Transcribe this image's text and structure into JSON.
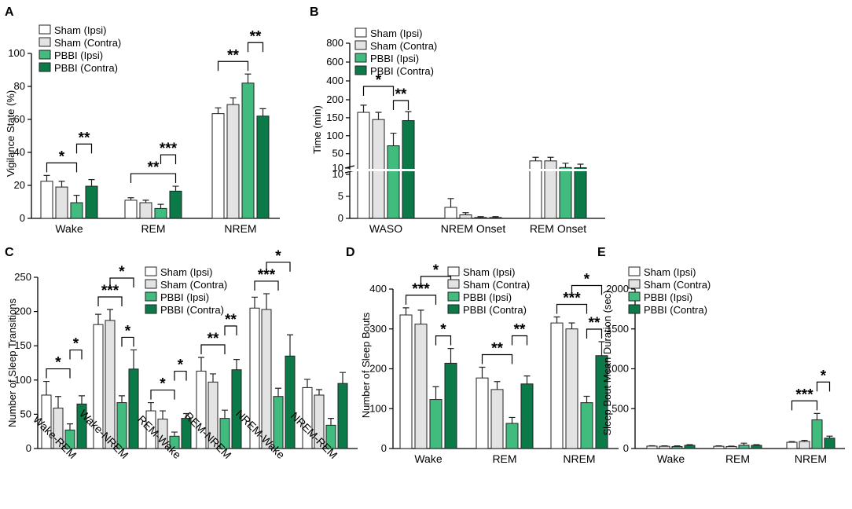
{
  "colors": {
    "sham_ipsi": "#ffffff",
    "sham_contra": "#e3e3e3",
    "pbbi_ipsi": "#41bb7e",
    "pbbi_contra": "#0b7a48",
    "edge": "#222222"
  },
  "chart_data": [
    {
      "panel": "A",
      "type": "bar",
      "ylabel": "Vigilance State (%)",
      "ylim": [
        0,
        100
      ],
      "yticks": [
        "0",
        "20",
        "40",
        "60",
        "80",
        "100"
      ],
      "categories": [
        "Wake",
        "REM",
        "NREM"
      ],
      "legend": [
        "Sham (Ipsi)",
        "Sham (Contra)",
        "PBBI (Ipsi)",
        "PBBI (Contra)"
      ],
      "series": [
        {
          "name": "Sham (Ipsi)",
          "values": [
            22.5,
            11,
            63.5
          ],
          "errors": [
            3.5,
            1.5,
            3.5
          ]
        },
        {
          "name": "Sham (Contra)",
          "values": [
            19,
            9.5,
            69
          ],
          "errors": [
            3.5,
            1.5,
            4
          ]
        },
        {
          "name": "PBBI (Ipsi)",
          "values": [
            9.5,
            6,
            82
          ],
          "errors": [
            4.5,
            2.5,
            5.5
          ]
        },
        {
          "name": "PBBI (Contra)",
          "values": [
            19.5,
            16.5,
            62
          ],
          "errors": [
            4,
            3,
            4.5
          ]
        }
      ],
      "annotations": [
        {
          "text": "*",
          "from": [
            0,
            0
          ],
          "to": [
            0,
            2
          ]
        },
        {
          "text": "**",
          "from": [
            0,
            2
          ],
          "to": [
            0,
            3
          ]
        },
        {
          "text": "**",
          "from": [
            1,
            0
          ],
          "to": [
            1,
            3
          ]
        },
        {
          "text": "***",
          "from": [
            1,
            2
          ],
          "to": [
            1,
            3
          ]
        },
        {
          "text": "**",
          "from": [
            2,
            0
          ],
          "to": [
            2,
            2
          ]
        },
        {
          "text": "**",
          "from": [
            2,
            2
          ],
          "to": [
            2,
            3
          ]
        }
      ]
    },
    {
      "panel": "B",
      "type": "bar",
      "ylabel": "Time (min)",
      "broken_axis": true,
      "ylim_lower": [
        0,
        10
      ],
      "ylim_upper": [
        10,
        800
      ],
      "yticks": [
        "0",
        "5",
        "10",
        "10",
        "50",
        "100",
        "150",
        "200",
        "400",
        "600",
        "800"
      ],
      "categories": [
        "WASO",
        "NREM Onset",
        "REM Onset"
      ],
      "legend": [
        "Sham (Ipsi)",
        "Sham (Contra)",
        "PBBI (Ipsi)",
        "PBBI (Contra)"
      ],
      "series": [
        {
          "name": "Sham (Ipsi)",
          "values": [
            165,
            2.5,
            30
          ],
          "errors": [
            20,
            2,
            10
          ]
        },
        {
          "name": "Sham (Contra)",
          "values": [
            145,
            0.8,
            30
          ],
          "errors": [
            20,
            0.5,
            10
          ]
        },
        {
          "name": "PBBI (Ipsi)",
          "values": [
            72,
            0.2,
            11.5
          ],
          "errors": [
            35,
            0.2,
            12
          ]
        },
        {
          "name": "PBBI (Contra)",
          "values": [
            142,
            0.2,
            11
          ],
          "errors": [
            25,
            0.2,
            10
          ]
        }
      ],
      "annotations": [
        {
          "text": "*",
          "from": [
            0,
            0
          ],
          "to": [
            0,
            2
          ]
        },
        {
          "text": "**",
          "from": [
            0,
            2
          ],
          "to": [
            0,
            3
          ]
        }
      ]
    },
    {
      "panel": "C",
      "type": "bar",
      "ylabel": "Number of Sleep Transitions",
      "ylim": [
        0,
        250
      ],
      "yticks": [
        "0",
        "50",
        "100",
        "150",
        "200",
        "250"
      ],
      "categories": [
        "Wake-REM",
        "Wake-NREM",
        "REM-Wake",
        "REM-NREM",
        "NREM-Wake",
        "NREM-REM"
      ],
      "legend": [
        "Sham (Ipsi)",
        "Sham (Contra)",
        "PBBI (Ipsi)",
        "PBBI (Contra)"
      ],
      "series": [
        {
          "name": "Sham (Ipsi)",
          "values": [
            78,
            181,
            55,
            113,
            205,
            89
          ],
          "errors": [
            20,
            15,
            12,
            20,
            16,
            12
          ]
        },
        {
          "name": "Sham (Contra)",
          "values": [
            59,
            187,
            43,
            97,
            203,
            78
          ],
          "errors": [
            17,
            16,
            12,
            12,
            23,
            8
          ]
        },
        {
          "name": "PBBI (Ipsi)",
          "values": [
            27,
            67,
            18,
            44,
            76,
            34
          ],
          "errors": [
            9,
            10,
            6,
            12,
            12,
            10
          ]
        },
        {
          "name": "PBBI (Contra)",
          "values": [
            65,
            116,
            44,
            115,
            135,
            95
          ],
          "errors": [
            12,
            28,
            7,
            15,
            31,
            16
          ]
        }
      ],
      "annotations": [
        {
          "text": "*",
          "from": [
            0,
            0
          ],
          "to": [
            0,
            2
          ]
        },
        {
          "text": "*",
          "from": [
            0,
            2
          ],
          "to": [
            0,
            3
          ]
        },
        {
          "text": "***",
          "from": [
            1,
            0
          ],
          "to": [
            1,
            2
          ]
        },
        {
          "text": "*",
          "from": [
            1,
            1
          ],
          "to": [
            1,
            3
          ]
        },
        {
          "text": "*",
          "from": [
            1,
            2
          ],
          "to": [
            1,
            3
          ]
        },
        {
          "text": "*",
          "from": [
            2,
            0
          ],
          "to": [
            2,
            2
          ]
        },
        {
          "text": "*",
          "from": [
            2,
            2
          ],
          "to": [
            2,
            3
          ]
        },
        {
          "text": "**",
          "from": [
            3,
            0
          ],
          "to": [
            3,
            2
          ]
        },
        {
          "text": "**",
          "from": [
            3,
            2
          ],
          "to": [
            3,
            3
          ]
        },
        {
          "text": "***",
          "from": [
            4,
            0
          ],
          "to": [
            4,
            2
          ]
        },
        {
          "text": "*",
          "from": [
            4,
            1
          ],
          "to": [
            4,
            3
          ]
        }
      ]
    },
    {
      "panel": "D",
      "type": "bar",
      "ylabel": "Number of Sleep Bouts",
      "ylim": [
        0,
        400
      ],
      "yticks": [
        "0",
        "100",
        "200",
        "300",
        "400"
      ],
      "categories": [
        "Wake",
        "REM",
        "NREM"
      ],
      "legend": [
        "Sham (Ipsi)",
        "Sham (Contra)",
        "PBBI (Ipsi)",
        "PBBI (Contra)"
      ],
      "series": [
        {
          "name": "Sham (Ipsi)",
          "values": [
            335,
            177,
            315
          ],
          "errors": [
            18,
            27,
            15
          ]
        },
        {
          "name": "Sham (Contra)",
          "values": [
            312,
            148,
            300
          ],
          "errors": [
            35,
            20,
            15
          ]
        },
        {
          "name": "PBBI (Ipsi)",
          "values": [
            123,
            63,
            115
          ],
          "errors": [
            32,
            15,
            16
          ]
        },
        {
          "name": "PBBI (Contra)",
          "values": [
            214,
            162,
            233
          ],
          "errors": [
            37,
            20,
            35
          ]
        }
      ],
      "annotations": [
        {
          "text": "***",
          "from": [
            0,
            0
          ],
          "to": [
            0,
            2
          ]
        },
        {
          "text": "*",
          "from": [
            0,
            1
          ],
          "to": [
            0,
            3
          ]
        },
        {
          "text": "*",
          "from": [
            0,
            2
          ],
          "to": [
            0,
            3
          ]
        },
        {
          "text": "**",
          "from": [
            1,
            0
          ],
          "to": [
            1,
            2
          ]
        },
        {
          "text": "**",
          "from": [
            1,
            2
          ],
          "to": [
            1,
            3
          ]
        },
        {
          "text": "***",
          "from": [
            2,
            0
          ],
          "to": [
            2,
            2
          ]
        },
        {
          "text": "*",
          "from": [
            2,
            1
          ],
          "to": [
            2,
            3
          ]
        },
        {
          "text": "**",
          "from": [
            2,
            2
          ],
          "to": [
            2,
            3
          ]
        }
      ]
    },
    {
      "panel": "E",
      "type": "bar",
      "ylabel": "Sleep Bout  Mean Duration  (sec)",
      "ylim": [
        0,
        2000
      ],
      "yticks": [
        "0",
        "500",
        "1000",
        "1500",
        "2000"
      ],
      "categories": [
        "Wake",
        "REM",
        "NREM"
      ],
      "legend": [
        "Sham (Ipsi)",
        "Sham (Contra)",
        "PBBI (Ipsi)",
        "PBBI (Contra)"
      ],
      "series": [
        {
          "name": "Sham (Ipsi)",
          "values": [
            30,
            28,
            78
          ],
          "errors": [
            5,
            5,
            8
          ]
        },
        {
          "name": "Sham (Contra)",
          "values": [
            28,
            25,
            88
          ],
          "errors": [
            5,
            5,
            15
          ]
        },
        {
          "name": "PBBI (Ipsi)",
          "values": [
            25,
            42,
            360
          ],
          "errors": [
            8,
            25,
            80
          ]
        },
        {
          "name": "PBBI (Contra)",
          "values": [
            40,
            40,
            130
          ],
          "errors": [
            8,
            8,
            25
          ]
        }
      ],
      "annotations": [
        {
          "text": "***",
          "from": [
            2,
            0
          ],
          "to": [
            2,
            2
          ]
        },
        {
          "text": "*",
          "from": [
            2,
            2
          ],
          "to": [
            2,
            3
          ]
        }
      ]
    }
  ]
}
